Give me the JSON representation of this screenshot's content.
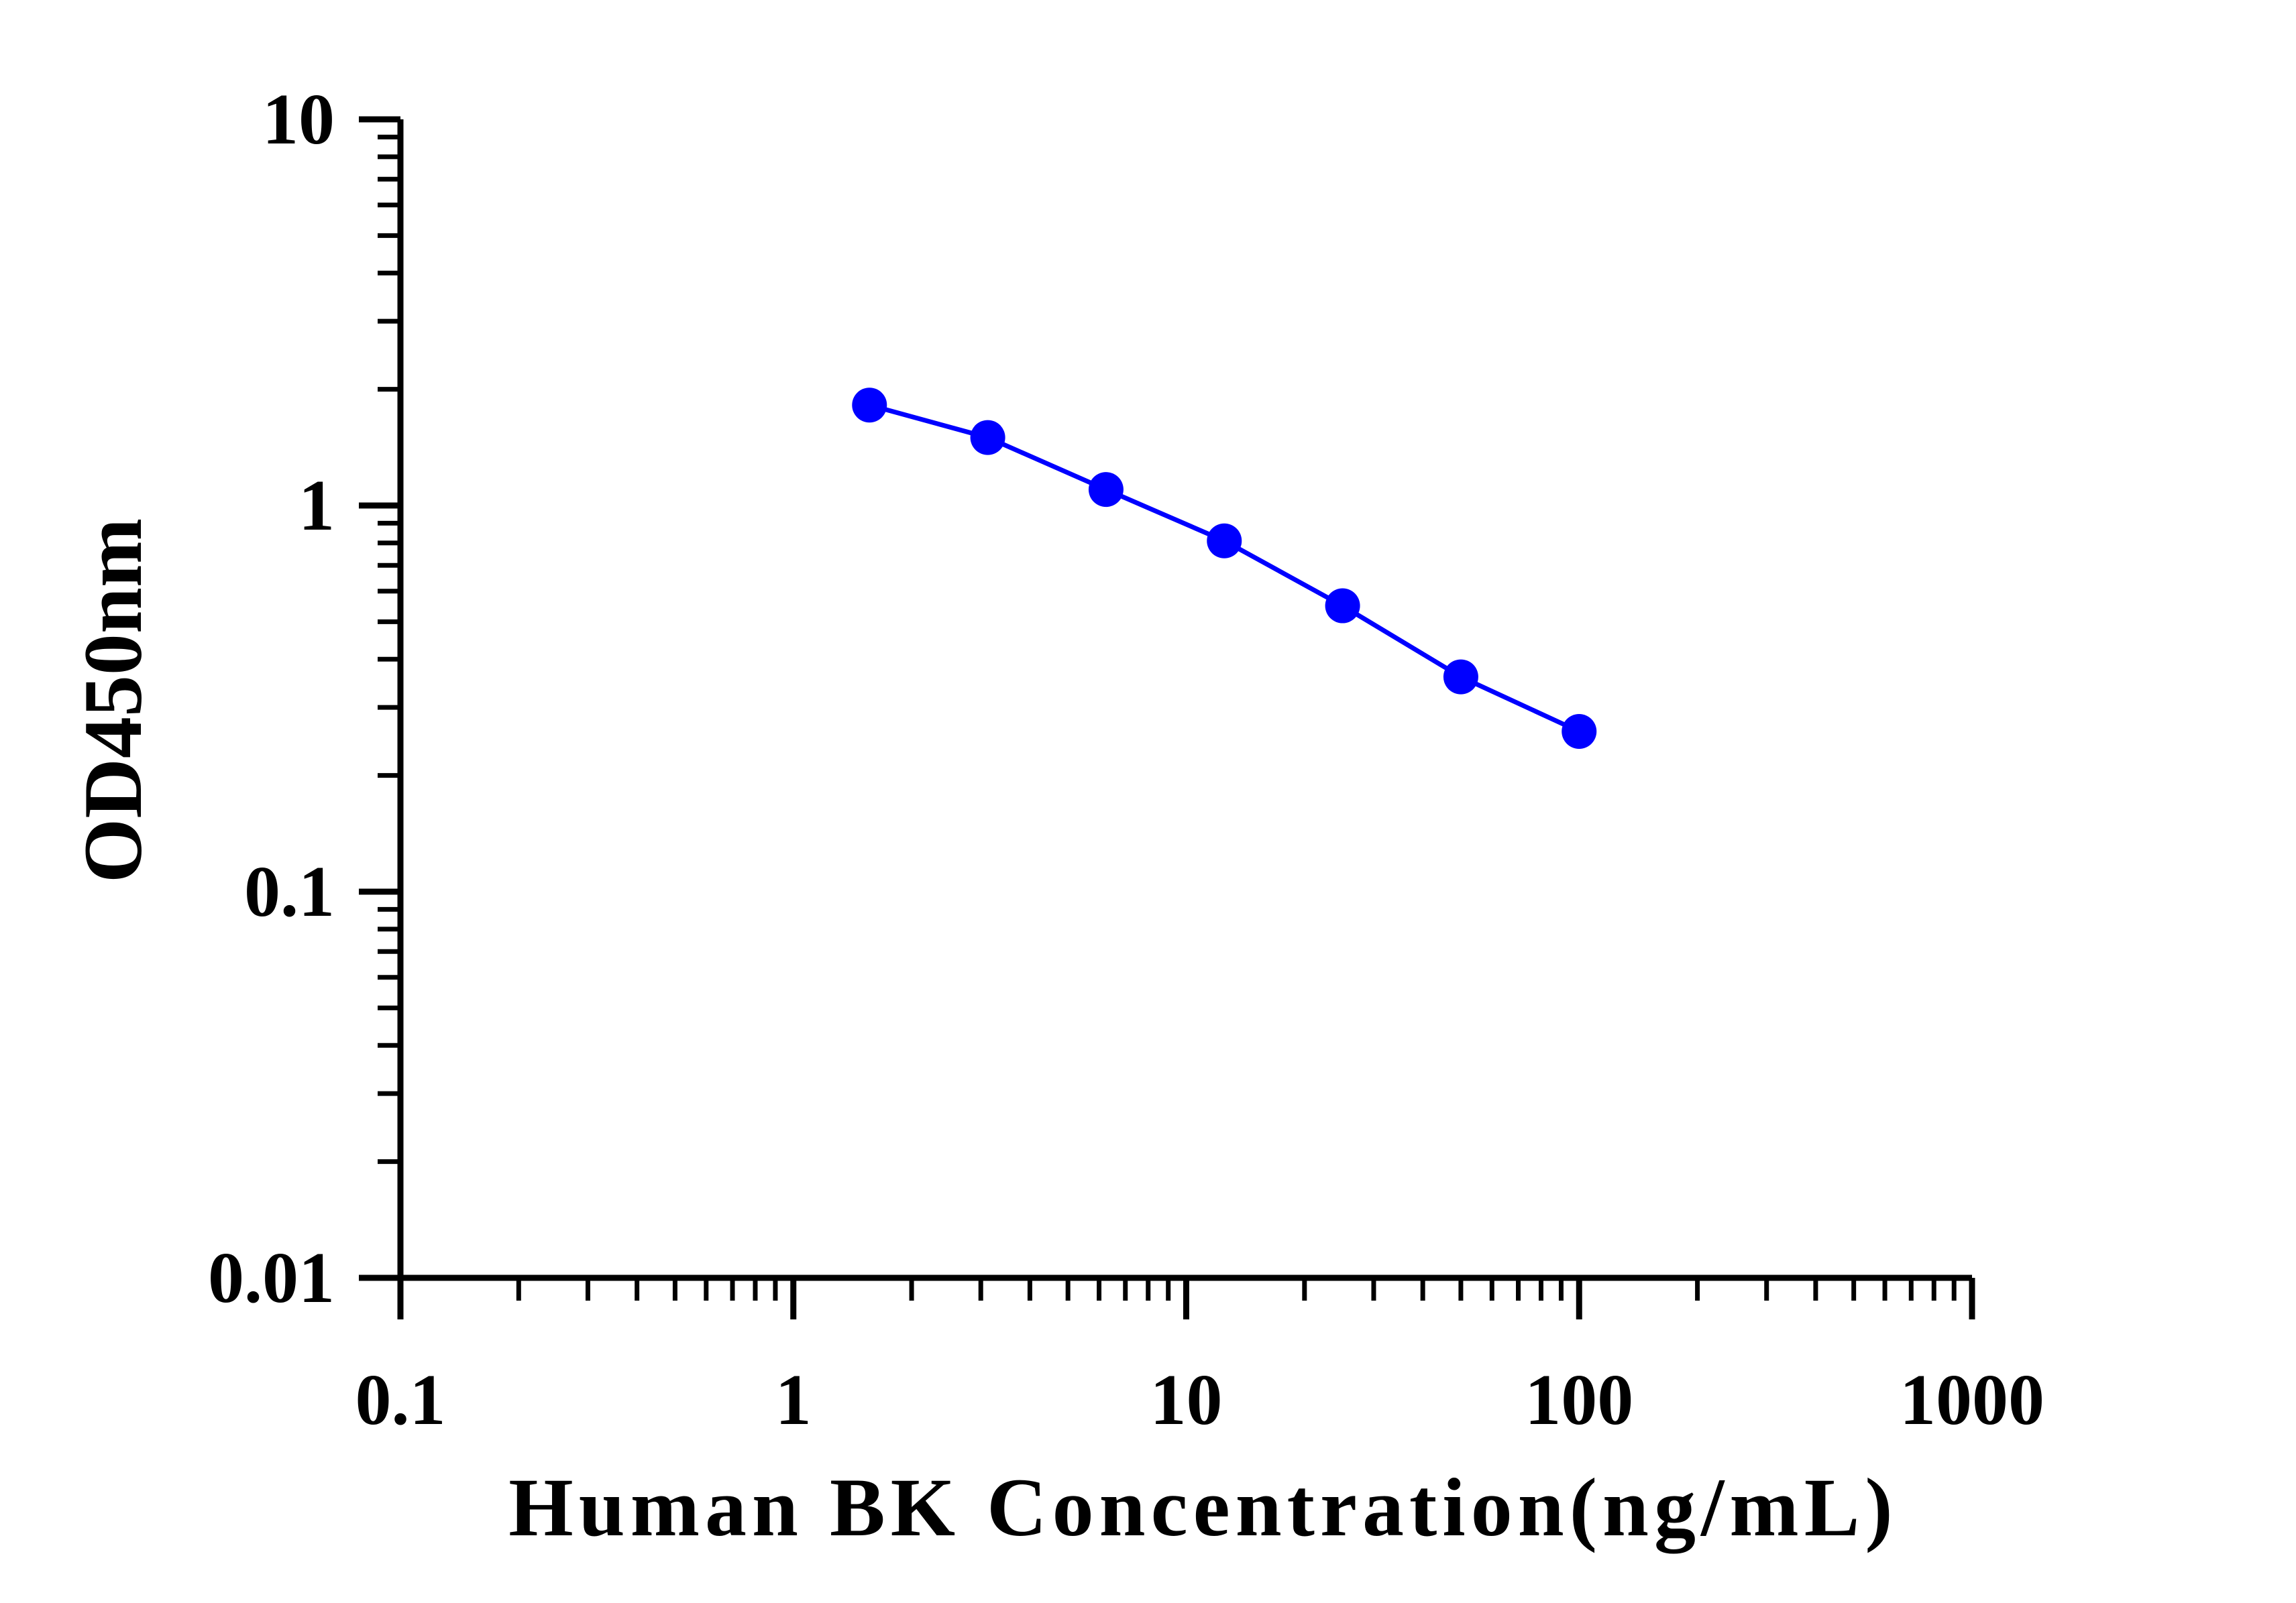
{
  "chart_data": {
    "type": "line",
    "xlabel": "Human BK Concentration(ng/mL)",
    "ylabel": "OD450nm",
    "x_scale": "log",
    "y_scale": "log",
    "xlim": [
      0.1,
      1000
    ],
    "ylim": [
      0.01,
      10
    ],
    "x_ticks": [
      {
        "value": 0.1,
        "label": "0.1"
      },
      {
        "value": 1,
        "label": "1"
      },
      {
        "value": 10,
        "label": "10"
      },
      {
        "value": 100,
        "label": "100"
      },
      {
        "value": 1000,
        "label": "1000"
      }
    ],
    "y_ticks": [
      {
        "value": 0.01,
        "label": "0.01"
      },
      {
        "value": 0.1,
        "label": "0.1"
      },
      {
        "value": 1,
        "label": "1"
      },
      {
        "value": 10,
        "label": "10"
      }
    ],
    "grid": false,
    "series": [
      {
        "color": "#0000ff",
        "x": [
          1.5625,
          3.125,
          6.25,
          12.5,
          25,
          50,
          100
        ],
        "y": [
          1.82,
          1.5,
          1.1,
          0.81,
          0.55,
          0.36,
          0.26
        ]
      }
    ]
  }
}
